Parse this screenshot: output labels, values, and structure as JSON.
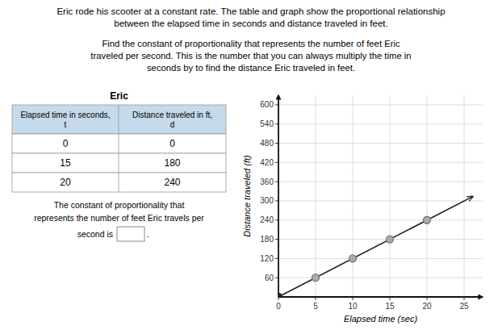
{
  "chart_data": [
    {
      "type": "table",
      "title": "Eric rode his scooter at a constant rate. The table and graph show the proportional relationship\nbetween the elapsed time in seconds and distance traveled in feet.",
      "subtitle": "Find the constant of proportionality that represents the number of feet Eric\ntraveled per second. This is the number that you can always multiply the time in\nseconds by to find the distance Eric traveled in feet.",
      "table_title": "Eric",
      "columns": [
        "Elapsed time in seconds,\nt",
        "Distance traveled in ft,\nd"
      ],
      "rows": [
        [
          0,
          0
        ],
        [
          15,
          180
        ],
        [
          20,
          240
        ]
      ],
      "color": "#c5daea",
      "annotations": [
        "The constant of proportionality that",
        "represents the number of feet Eric travels per",
        "second is",
        "."
      ]
    },
    {
      "type": "line",
      "x_label": "Elapsed time (sec)",
      "y_label": "Distance traveled (ft)",
      "xlim": [
        0,
        27.5
      ],
      "ylim": [
        0,
        630
      ],
      "xticks": [
        0,
        5,
        10,
        15,
        20,
        25
      ],
      "yticks": [
        60,
        120,
        180,
        240,
        300,
        360,
        420,
        480,
        540,
        600
      ],
      "grid": true,
      "series": [
        {
          "type": "line",
          "color": "#222222",
          "x": [
            0,
            26.2
          ],
          "values": [
            0,
            314
          ]
        },
        {
          "type": "scatter",
          "color": "#777777",
          "colors": [
            "#222222",
            "#aaaaaa",
            "#aaaaaa",
            "#aaaaaa",
            "#aaaaaa"
          ],
          "x": [
            0,
            5,
            10,
            15,
            20
          ],
          "values": [
            0,
            60,
            120,
            180,
            240
          ]
        }
      ]
    }
  ]
}
